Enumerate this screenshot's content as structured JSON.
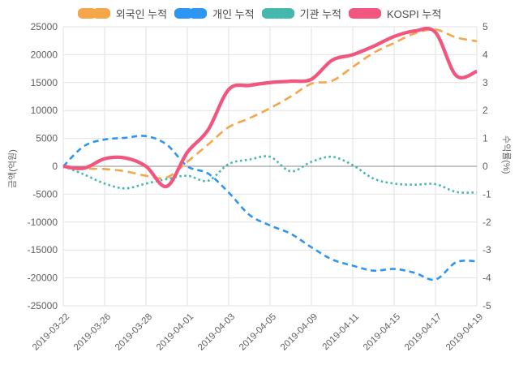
{
  "chart_data": {
    "type": "line",
    "title": "",
    "x_dates": [
      "2019-03-22",
      "2019-03-25",
      "2019-03-26",
      "2019-03-27",
      "2019-03-28",
      "2019-03-29",
      "2019-04-01",
      "2019-04-02",
      "2019-04-03",
      "2019-04-04",
      "2019-04-05",
      "2019-04-08",
      "2019-04-09",
      "2019-04-10",
      "2019-04-11",
      "2019-04-12",
      "2019-04-15",
      "2019-04-16",
      "2019-04-17",
      "2019-04-18",
      "2019-04-19"
    ],
    "x_tick_labels": [
      "2019-03-22",
      "2019-03-26",
      "2019-03-28",
      "2019-04-01",
      "2019-04-03",
      "2019-04-05",
      "2019-04-09",
      "2019-04-11",
      "2019-04-15",
      "2019-04-17",
      "2019-04-19"
    ],
    "axes": {
      "left": {
        "label": "금액(억원)",
        "min": -25000,
        "max": 25000,
        "ticks": [
          25000,
          20000,
          15000,
          10000,
          5000,
          0,
          -5000,
          -10000,
          -15000,
          -20000,
          -25000
        ]
      },
      "right": {
        "label": "수익률(%)",
        "min": -5,
        "max": 5,
        "ticks": [
          5,
          4,
          3,
          2,
          1,
          0,
          -1,
          -2,
          -3,
          -4,
          -5
        ]
      }
    },
    "grid": true,
    "legend_position": "top",
    "series": [
      {
        "id": "foreign",
        "name": "외국인 누적",
        "axis": "left",
        "style": "dashed",
        "color": "#F5A54A",
        "values": [
          0,
          -400,
          -500,
          -900,
          -1700,
          -2000,
          800,
          3900,
          7000,
          8600,
          10400,
          12500,
          14800,
          15300,
          17800,
          20300,
          22100,
          23800,
          24500,
          23100,
          22400
        ]
      },
      {
        "id": "individual",
        "name": "개인 누적",
        "axis": "left",
        "style": "dashed",
        "color": "#2D96F5",
        "values": [
          0,
          3600,
          4800,
          5100,
          5400,
          3900,
          0,
          -1300,
          -4700,
          -8700,
          -10600,
          -12100,
          -14500,
          -16700,
          -17800,
          -18700,
          -18400,
          -19100,
          -20300,
          -17200,
          -17000
        ]
      },
      {
        "id": "institution",
        "name": "기관 누적",
        "axis": "left",
        "style": "dotted",
        "color": "#45B8AE",
        "values": [
          0,
          -1450,
          -3100,
          -3950,
          -3100,
          -2300,
          -1700,
          -2600,
          400,
          1200,
          1700,
          -900,
          800,
          1700,
          200,
          -2200,
          -3100,
          -3300,
          -3200,
          -4600,
          -4700
        ]
      },
      {
        "id": "kospi",
        "name": "KOSPI 누적",
        "axis": "right",
        "style": "solid",
        "color": "#F0567E",
        "values": [
          0,
          -0.07,
          0.27,
          0.3,
          0,
          -0.72,
          0.5,
          1.3,
          2.75,
          2.9,
          3.0,
          3.05,
          3.12,
          3.8,
          4.0,
          4.3,
          4.65,
          4.85,
          4.8,
          3.25,
          3.4
        ]
      }
    ],
    "colors": {
      "grid": "#E2E2E2",
      "zero_line": "#8E8E8E",
      "tick_text": "#5F5F5F",
      "legend_text": "#4A4A4A",
      "background": "#FFFFFF"
    }
  }
}
